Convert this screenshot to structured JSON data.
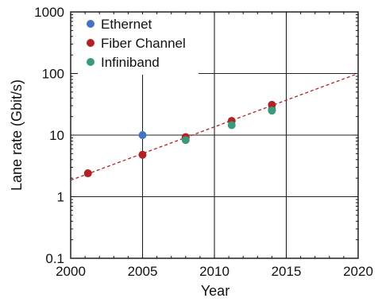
{
  "chart_data": {
    "type": "scatter",
    "title": "",
    "xlabel": "Year",
    "ylabel": "Lane rate (Gbit/s)",
    "xlim": [
      2000,
      2020
    ],
    "ylim": [
      0.1,
      1000
    ],
    "yscale": "log",
    "grid": true,
    "legend_position": "top-left",
    "x_ticks": [
      2000,
      2005,
      2010,
      2015,
      2020
    ],
    "x_tick_labels": [
      "2000",
      "2005",
      "2010",
      "2015",
      "2020"
    ],
    "y_ticks": [
      0.1,
      1,
      10,
      100,
      1000
    ],
    "y_tick_labels": [
      "0.1",
      "1",
      "10",
      "100",
      "1000"
    ],
    "series": [
      {
        "name": "Ethernet",
        "color": "#4472c4",
        "points": [
          {
            "x": 2005,
            "y": 10
          },
          {
            "x": 2008,
            "y": 9
          },
          {
            "x": 2014,
            "y": 26
          }
        ]
      },
      {
        "name": "Fiber Channel",
        "color": "#b22222",
        "points": [
          {
            "x": 2001.2,
            "y": 2.4
          },
          {
            "x": 2005,
            "y": 4.8
          },
          {
            "x": 2008,
            "y": 9.3
          },
          {
            "x": 2011.2,
            "y": 17
          },
          {
            "x": 2014,
            "y": 31
          }
        ]
      },
      {
        "name": "Infiniband",
        "color": "#3a9a7a",
        "points": [
          {
            "x": 2008,
            "y": 8.3
          },
          {
            "x": 2011.2,
            "y": 14.5
          },
          {
            "x": 2014,
            "y": 25
          }
        ]
      }
    ],
    "trendline": {
      "style": "dashed",
      "color": "#b22222",
      "points": [
        {
          "x": 2000,
          "y": 1.85
        },
        {
          "x": 2020,
          "y": 100
        }
      ]
    }
  }
}
